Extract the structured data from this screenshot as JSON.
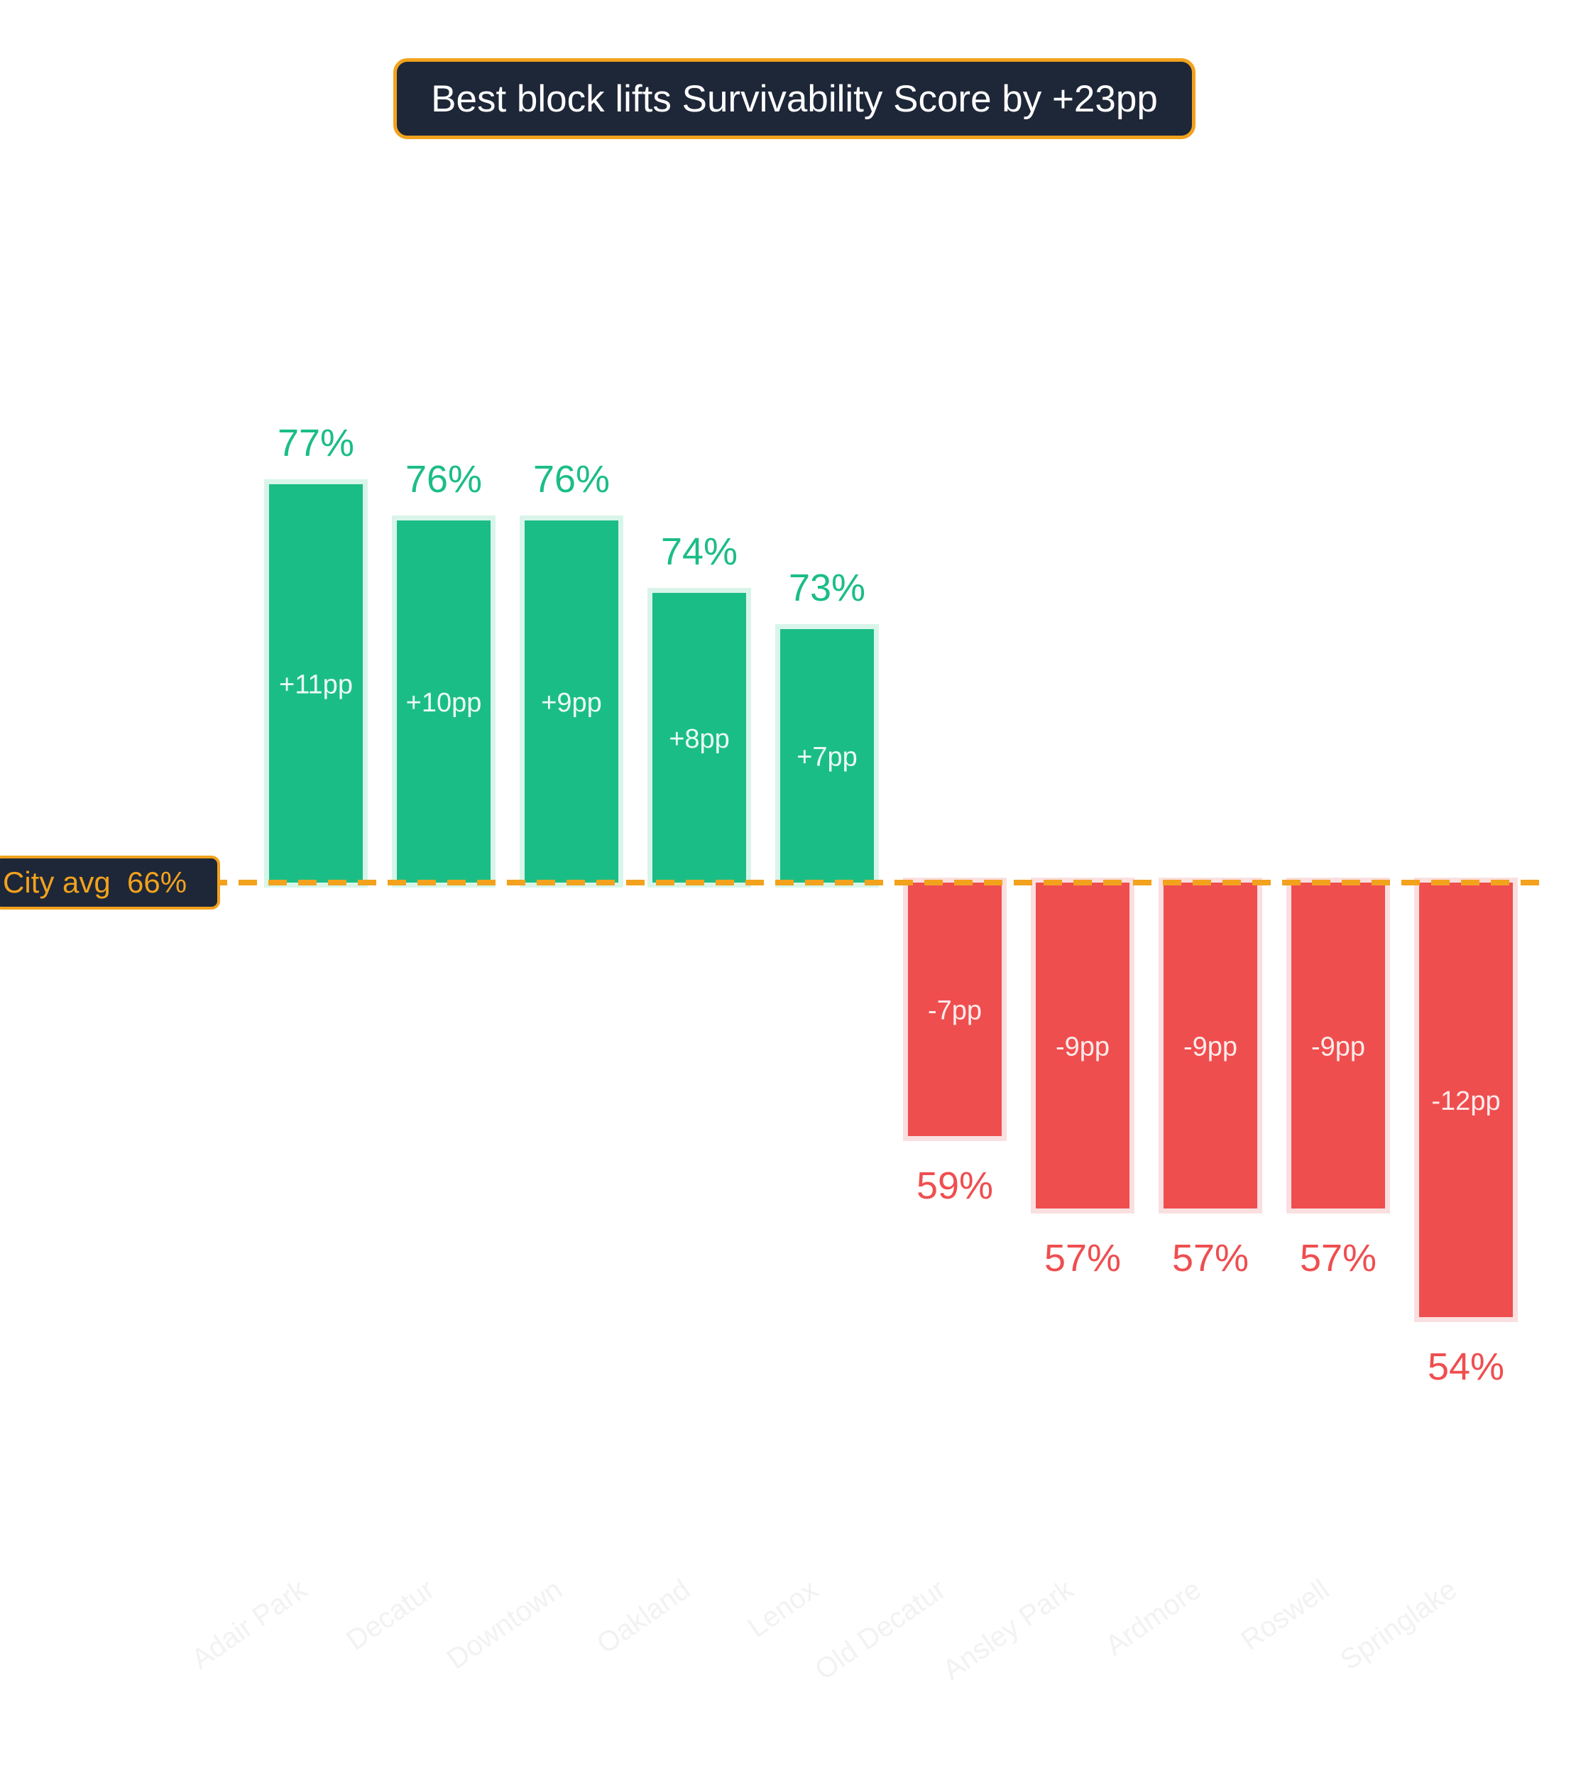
{
  "title": "Best block lifts Survivability Score by +23pp",
  "average_label": "City avg  66%",
  "colors": {
    "positive": "#1bbd86",
    "positive_halo": "#d9f5ea",
    "negative": "#ef4e4f",
    "negative_halo": "#fadfe0",
    "average_line": "#f2a21d",
    "title_bg": "#1e2738",
    "category_label": "#f2f2f2"
  },
  "chart_data": {
    "type": "bar",
    "title": "Best block lifts Survivability Score by +23pp",
    "baseline": 66,
    "baseline_label": "City avg  66%",
    "categories": [
      "Adair Park",
      "Decatur",
      "Downtown",
      "Oakland",
      "Lenox",
      "Old Decatur",
      "Ansley Park",
      "Ardmore",
      "Roswell",
      "Springlake"
    ],
    "values": [
      77,
      76,
      76,
      74,
      73,
      59,
      57,
      57,
      57,
      54
    ],
    "value_labels": [
      "77%",
      "76%",
      "76%",
      "74%",
      "73%",
      "59%",
      "57%",
      "57%",
      "57%",
      "54%"
    ],
    "delta_labels": [
      "+11pp",
      "+10pp",
      "+9pp",
      "+8pp",
      "+7pp",
      "-7pp",
      "-9pp",
      "-9pp",
      "-9pp",
      "-12pp"
    ],
    "xlabel": "",
    "ylabel": "",
    "grid": false
  }
}
